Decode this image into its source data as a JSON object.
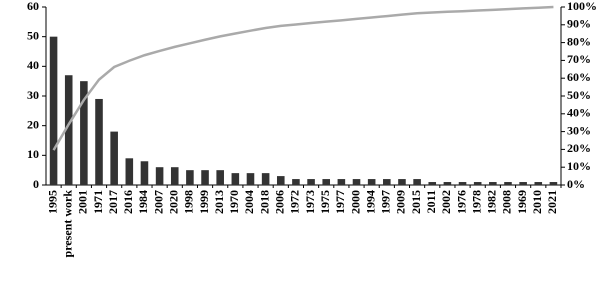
{
  "chart_data": {
    "type": "bar",
    "categories": [
      "1995",
      "present work",
      "2001",
      "1971",
      "2017",
      "2016",
      "1984",
      "2007",
      "2020",
      "1998",
      "1999",
      "2013",
      "1970",
      "2004",
      "2018",
      "2006",
      "1972",
      "1973",
      "1975",
      "1977",
      "2000",
      "1994",
      "1997",
      "2009",
      "2015",
      "2011",
      "2002",
      "1976",
      "1978",
      "1982",
      "2008",
      "1969",
      "2010",
      "2021"
    ],
    "series": [
      {
        "type": "bar",
        "color": "#333333",
        "values": [
          50,
          37,
          35,
          29,
          18,
          9,
          8,
          6,
          6,
          5,
          5,
          5,
          4,
          4,
          4,
          3,
          2,
          2,
          2,
          2,
          2,
          2,
          2,
          2,
          2,
          1,
          1,
          1,
          1,
          1,
          1,
          1,
          1,
          1
        ]
      },
      {
        "type": "line",
        "axis": "y2",
        "color": "#aaaaaa",
        "values": [
          19.6,
          34.1,
          47.8,
          59.2,
          66.3,
          69.8,
          72.9,
          75.3,
          77.6,
          79.6,
          81.6,
          83.5,
          85.1,
          86.7,
          88.2,
          89.4,
          90.2,
          91.0,
          91.8,
          92.5,
          93.3,
          94.1,
          94.9,
          95.7,
          96.5,
          96.9,
          97.3,
          97.6,
          98.0,
          98.4,
          98.8,
          99.2,
          99.6,
          100
        ]
      }
    ],
    "ylim": [
      0,
      60
    ],
    "yticks": [
      0,
      10,
      20,
      30,
      40,
      50,
      60
    ],
    "y2lim": [
      0,
      100
    ],
    "y2ticks": [
      {
        "value": 0,
        "label": "0%"
      },
      {
        "value": 10,
        "label": "10%"
      },
      {
        "value": 20,
        "label": "20%"
      },
      {
        "value": 30,
        "label": "30%"
      },
      {
        "value": 40,
        "label": "40%"
      },
      {
        "value": 50,
        "label": "50%"
      },
      {
        "value": 60,
        "label": "60%"
      },
      {
        "value": 70,
        "label": "70%"
      },
      {
        "value": 80,
        "label": "80%"
      },
      {
        "value": 90,
        "label": "90%"
      },
      {
        "value": 100,
        "label": "100%"
      }
    ]
  }
}
